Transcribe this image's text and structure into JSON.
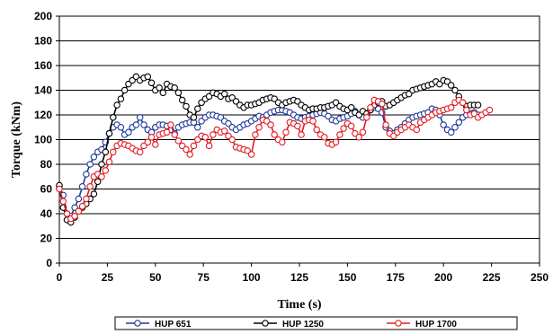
{
  "chart_data": {
    "type": "line",
    "title": "",
    "xlabel": "Time (s)",
    "ylabel": "Torque (kNm)",
    "xlim": [
      0,
      250
    ],
    "ylim": [
      0,
      200
    ],
    "x_ticks": [
      "0",
      "25",
      "50",
      "75",
      "100",
      "125",
      "150",
      "175",
      "200",
      "225",
      "250"
    ],
    "y_ticks": [
      "0",
      "20",
      "40",
      "60",
      "80",
      "100",
      "120",
      "140",
      "160",
      "180",
      "200"
    ],
    "grid": "horizontal",
    "legend_position": "bottom",
    "series": [
      {
        "name": "HUP 651",
        "color": "#1f3a9a",
        "points": [
          [
            0,
            62
          ],
          [
            2,
            55
          ],
          [
            4,
            40
          ],
          [
            6,
            38
          ],
          [
            8,
            45
          ],
          [
            10,
            52
          ],
          [
            12,
            62
          ],
          [
            14,
            72
          ],
          [
            16,
            80
          ],
          [
            18,
            86
          ],
          [
            20,
            90
          ],
          [
            22,
            92
          ],
          [
            24,
            98
          ],
          [
            26,
            105
          ],
          [
            28,
            110
          ],
          [
            30,
            112
          ],
          [
            32,
            110
          ],
          [
            34,
            104
          ],
          [
            36,
            106
          ],
          [
            38,
            110
          ],
          [
            40,
            112
          ],
          [
            42,
            118
          ],
          [
            44,
            112
          ],
          [
            46,
            108
          ],
          [
            48,
            106
          ],
          [
            50,
            110
          ],
          [
            52,
            112
          ],
          [
            54,
            112
          ],
          [
            56,
            111
          ],
          [
            58,
            108
          ],
          [
            60,
            105
          ],
          [
            62,
            110
          ],
          [
            64,
            112
          ],
          [
            66,
            113
          ],
          [
            68,
            114
          ],
          [
            70,
            114
          ],
          [
            72,
            110
          ],
          [
            74,
            115
          ],
          [
            76,
            118
          ],
          [
            78,
            120
          ],
          [
            80,
            120
          ],
          [
            82,
            119
          ],
          [
            84,
            118
          ],
          [
            86,
            115
          ],
          [
            88,
            113
          ],
          [
            90,
            110
          ],
          [
            92,
            108
          ],
          [
            94,
            110
          ],
          [
            96,
            112
          ],
          [
            98,
            113
          ],
          [
            100,
            115
          ],
          [
            102,
            117
          ],
          [
            104,
            119
          ],
          [
            106,
            118
          ],
          [
            108,
            120
          ],
          [
            110,
            122
          ],
          [
            112,
            123
          ],
          [
            114,
            124
          ],
          [
            116,
            124
          ],
          [
            118,
            123
          ],
          [
            120,
            122
          ],
          [
            122,
            120
          ],
          [
            124,
            118
          ],
          [
            126,
            117
          ],
          [
            128,
            118
          ],
          [
            130,
            119
          ],
          [
            132,
            120
          ],
          [
            134,
            121
          ],
          [
            136,
            122
          ],
          [
            138,
            121
          ],
          [
            140,
            119
          ],
          [
            142,
            116
          ],
          [
            144,
            115
          ],
          [
            146,
            117
          ],
          [
            148,
            118
          ],
          [
            150,
            119
          ],
          [
            152,
            121
          ],
          [
            154,
            123
          ],
          [
            156,
            120
          ],
          [
            158,
            118
          ],
          [
            160,
            121
          ],
          [
            162,
            124
          ],
          [
            164,
            126
          ],
          [
            166,
            125
          ],
          [
            168,
            122
          ],
          [
            170,
            110
          ],
          [
            172,
            107
          ],
          [
            174,
            105
          ],
          [
            176,
            108
          ],
          [
            178,
            110
          ],
          [
            180,
            113
          ],
          [
            182,
            116
          ],
          [
            184,
            118
          ],
          [
            186,
            119
          ],
          [
            188,
            120
          ],
          [
            190,
            121
          ],
          [
            192,
            122
          ],
          [
            194,
            125
          ],
          [
            196,
            124
          ],
          [
            198,
            120
          ],
          [
            200,
            112
          ],
          [
            202,
            108
          ],
          [
            204,
            106
          ],
          [
            206,
            110
          ],
          [
            208,
            114
          ],
          [
            210,
            118
          ],
          [
            212,
            120
          ],
          [
            214,
            121
          ],
          [
            216,
            122
          ],
          [
            218,
            120
          ]
        ]
      },
      {
        "name": "HUP 1250",
        "color": "#000000",
        "points": [
          [
            0,
            63
          ],
          [
            2,
            45
          ],
          [
            4,
            35
          ],
          [
            6,
            33
          ],
          [
            8,
            37
          ],
          [
            10,
            42
          ],
          [
            12,
            45
          ],
          [
            14,
            48
          ],
          [
            16,
            52
          ],
          [
            18,
            56
          ],
          [
            20,
            66
          ],
          [
            22,
            80
          ],
          [
            24,
            90
          ],
          [
            26,
            105
          ],
          [
            28,
            118
          ],
          [
            30,
            128
          ],
          [
            32,
            133
          ],
          [
            34,
            140
          ],
          [
            36,
            145
          ],
          [
            38,
            148
          ],
          [
            40,
            151
          ],
          [
            42,
            148
          ],
          [
            44,
            150
          ],
          [
            46,
            151
          ],
          [
            48,
            146
          ],
          [
            50,
            140
          ],
          [
            52,
            142
          ],
          [
            54,
            138
          ],
          [
            56,
            145
          ],
          [
            58,
            143
          ],
          [
            60,
            142
          ],
          [
            62,
            138
          ],
          [
            64,
            132
          ],
          [
            66,
            127
          ],
          [
            68,
            120
          ],
          [
            70,
            118
          ],
          [
            72,
            125
          ],
          [
            74,
            130
          ],
          [
            76,
            133
          ],
          [
            78,
            135
          ],
          [
            80,
            138
          ],
          [
            82,
            137
          ],
          [
            84,
            135
          ],
          [
            86,
            137
          ],
          [
            88,
            133
          ],
          [
            90,
            134
          ],
          [
            92,
            131
          ],
          [
            94,
            128
          ],
          [
            96,
            126
          ],
          [
            98,
            128
          ],
          [
            100,
            128
          ],
          [
            102,
            129
          ],
          [
            104,
            130
          ],
          [
            106,
            132
          ],
          [
            108,
            133
          ],
          [
            110,
            134
          ],
          [
            112,
            133
          ],
          [
            114,
            130
          ],
          [
            116,
            128
          ],
          [
            118,
            130
          ],
          [
            120,
            131
          ],
          [
            122,
            132
          ],
          [
            124,
            131
          ],
          [
            126,
            128
          ],
          [
            128,
            126
          ],
          [
            130,
            124
          ],
          [
            132,
            125
          ],
          [
            134,
            125
          ],
          [
            136,
            126
          ],
          [
            138,
            126
          ],
          [
            140,
            127
          ],
          [
            142,
            128
          ],
          [
            144,
            130
          ],
          [
            146,
            127
          ],
          [
            148,
            125
          ],
          [
            150,
            124
          ],
          [
            152,
            126
          ],
          [
            154,
            122
          ],
          [
            156,
            120
          ],
          [
            158,
            123
          ],
          [
            160,
            121
          ],
          [
            162,
            124
          ],
          [
            164,
            128
          ],
          [
            166,
            130
          ],
          [
            168,
            131
          ],
          [
            170,
            127
          ],
          [
            172,
            128
          ],
          [
            174,
            130
          ],
          [
            176,
            132
          ],
          [
            178,
            134
          ],
          [
            180,
            136
          ],
          [
            182,
            137
          ],
          [
            184,
            140
          ],
          [
            186,
            141
          ],
          [
            188,
            142
          ],
          [
            190,
            143
          ],
          [
            192,
            144
          ],
          [
            194,
            145
          ],
          [
            196,
            147
          ],
          [
            198,
            145
          ],
          [
            200,
            148
          ],
          [
            202,
            147
          ],
          [
            204,
            144
          ],
          [
            206,
            140
          ],
          [
            208,
            135
          ],
          [
            210,
            130
          ],
          [
            212,
            127
          ],
          [
            214,
            128
          ],
          [
            216,
            128
          ],
          [
            218,
            128
          ]
        ]
      },
      {
        "name": "HUP 1700",
        "color": "#e31b23",
        "points": [
          [
            0,
            60
          ],
          [
            2,
            50
          ],
          [
            4,
            40
          ],
          [
            6,
            36
          ],
          [
            8,
            38
          ],
          [
            10,
            42
          ],
          [
            12,
            46
          ],
          [
            14,
            52
          ],
          [
            16,
            62
          ],
          [
            18,
            70
          ],
          [
            20,
            72
          ],
          [
            22,
            70
          ],
          [
            24,
            75
          ],
          [
            26,
            82
          ],
          [
            28,
            90
          ],
          [
            30,
            95
          ],
          [
            32,
            97
          ],
          [
            34,
            96
          ],
          [
            36,
            95
          ],
          [
            38,
            93
          ],
          [
            40,
            91
          ],
          [
            42,
            90
          ],
          [
            44,
            95
          ],
          [
            46,
            98
          ],
          [
            48,
            102
          ],
          [
            50,
            96
          ],
          [
            52,
            104
          ],
          [
            54,
            105
          ],
          [
            56,
            106
          ],
          [
            58,
            112
          ],
          [
            60,
            104
          ],
          [
            62,
            99
          ],
          [
            64,
            95
          ],
          [
            66,
            92
          ],
          [
            68,
            88
          ],
          [
            70,
            95
          ],
          [
            72,
            100
          ],
          [
            74,
            103
          ],
          [
            76,
            102
          ],
          [
            78,
            95
          ],
          [
            80,
            104
          ],
          [
            82,
            108
          ],
          [
            84,
            106
          ],
          [
            86,
            107
          ],
          [
            88,
            103
          ],
          [
            90,
            100
          ],
          [
            92,
            94
          ],
          [
            94,
            93
          ],
          [
            96,
            92
          ],
          [
            98,
            91
          ],
          [
            100,
            88
          ],
          [
            102,
            104
          ],
          [
            104,
            110
          ],
          [
            106,
            116
          ],
          [
            108,
            115
          ],
          [
            110,
            112
          ],
          [
            112,
            104
          ],
          [
            114,
            100
          ],
          [
            116,
            98
          ],
          [
            118,
            106
          ],
          [
            120,
            114
          ],
          [
            122,
            113
          ],
          [
            124,
            111
          ],
          [
            126,
            104
          ],
          [
            128,
            115
          ],
          [
            130,
            116
          ],
          [
            132,
            115
          ],
          [
            134,
            108
          ],
          [
            136,
            104
          ],
          [
            138,
            102
          ],
          [
            140,
            97
          ],
          [
            142,
            96
          ],
          [
            144,
            98
          ],
          [
            146,
            104
          ],
          [
            148,
            109
          ],
          [
            150,
            113
          ],
          [
            152,
            111
          ],
          [
            154,
            105
          ],
          [
            156,
            102
          ],
          [
            158,
            106
          ],
          [
            160,
            118
          ],
          [
            162,
            126
          ],
          [
            164,
            132
          ],
          [
            166,
            131
          ],
          [
            168,
            129
          ],
          [
            170,
            112
          ],
          [
            172,
            105
          ],
          [
            174,
            103
          ],
          [
            176,
            106
          ],
          [
            178,
            108
          ],
          [
            180,
            110
          ],
          [
            182,
            112
          ],
          [
            184,
            110
          ],
          [
            186,
            108
          ],
          [
            188,
            114
          ],
          [
            190,
            116
          ],
          [
            192,
            118
          ],
          [
            194,
            120
          ],
          [
            196,
            122
          ],
          [
            198,
            123
          ],
          [
            200,
            124
          ],
          [
            202,
            125
          ],
          [
            204,
            126
          ],
          [
            206,
            130
          ],
          [
            208,
            132
          ],
          [
            210,
            130
          ],
          [
            212,
            124
          ],
          [
            214,
            120
          ],
          [
            216,
            121
          ],
          [
            218,
            118
          ],
          [
            220,
            120
          ],
          [
            222,
            122
          ],
          [
            224,
            124
          ]
        ]
      }
    ]
  }
}
